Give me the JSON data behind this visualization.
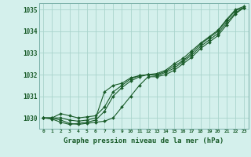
{
  "title": "Graphe pression niveau de la mer (hPa)",
  "bg_color": "#d4f0ec",
  "grid_color": "#aad4cc",
  "line_color": "#1a5c2a",
  "spine_color": "#7ab0a8",
  "xlim": [
    -0.5,
    23.5
  ],
  "ylim": [
    1029.5,
    1035.3
  ],
  "yticks": [
    1030,
    1031,
    1032,
    1033,
    1034,
    1035
  ],
  "xticks": [
    0,
    1,
    2,
    3,
    4,
    5,
    6,
    7,
    8,
    9,
    10,
    11,
    12,
    13,
    14,
    15,
    16,
    17,
    18,
    19,
    20,
    21,
    22,
    23
  ],
  "series": [
    [
      1030.0,
      1030.0,
      1029.9,
      1029.75,
      1029.7,
      1029.75,
      1029.8,
      1029.85,
      1030.0,
      1030.5,
      1031.0,
      1031.5,
      1031.9,
      1031.9,
      1032.0,
      1032.2,
      1032.5,
      1032.8,
      1033.2,
      1033.5,
      1033.8,
      1034.3,
      1034.8,
      1035.1
    ],
    [
      1030.0,
      1029.95,
      1029.8,
      1029.7,
      1029.75,
      1029.8,
      1029.9,
      1030.3,
      1031.0,
      1031.4,
      1031.7,
      1031.9,
      1032.0,
      1031.95,
      1032.1,
      1032.3,
      1032.6,
      1032.9,
      1033.3,
      1033.6,
      1033.9,
      1034.4,
      1034.85,
      1035.1
    ],
    [
      1030.0,
      1030.0,
      1030.2,
      1030.1,
      1030.0,
      1030.05,
      1030.1,
      1030.5,
      1031.2,
      1031.5,
      1031.8,
      1031.95,
      1032.0,
      1032.0,
      1032.15,
      1032.4,
      1032.65,
      1033.0,
      1033.4,
      1033.7,
      1034.0,
      1034.5,
      1034.95,
      1035.1
    ],
    [
      1030.0,
      1030.0,
      1030.0,
      1029.9,
      1029.85,
      1029.9,
      1030.0,
      1031.2,
      1031.5,
      1031.6,
      1031.85,
      1031.95,
      1032.0,
      1032.05,
      1032.2,
      1032.5,
      1032.75,
      1033.1,
      1033.45,
      1033.75,
      1034.05,
      1034.55,
      1035.0,
      1035.15
    ]
  ]
}
